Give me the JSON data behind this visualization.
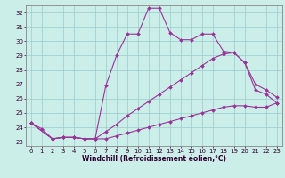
{
  "xlabel": "Windchill (Refroidissement éolien,°C)",
  "ylabel": "",
  "xlim": [
    -0.5,
    23.5
  ],
  "ylim": [
    22.7,
    32.5
  ],
  "yticks": [
    23,
    24,
    25,
    26,
    27,
    28,
    29,
    30,
    31,
    32
  ],
  "xticks": [
    0,
    1,
    2,
    3,
    4,
    5,
    6,
    7,
    8,
    9,
    10,
    11,
    12,
    13,
    14,
    15,
    16,
    17,
    18,
    19,
    20,
    21,
    22,
    23
  ],
  "background_color": "#cceee8",
  "line_color": "#993399",
  "grid_color": "#99cccc",
  "lines": [
    {
      "x": [
        0,
        1,
        2,
        3,
        4,
        5,
        6,
        7,
        8,
        9,
        10,
        11,
        12,
        13,
        14,
        15,
        16,
        17,
        18,
        19,
        20,
        21,
        22,
        23
      ],
      "y": [
        24.3,
        23.9,
        23.2,
        23.3,
        23.3,
        23.2,
        23.2,
        26.9,
        29.0,
        30.5,
        30.5,
        32.3,
        32.3,
        30.6,
        30.1,
        30.1,
        30.5,
        30.5,
        29.3,
        29.2,
        28.5,
        26.6,
        26.3,
        25.7
      ]
    },
    {
      "x": [
        0,
        2,
        3,
        4,
        5,
        6,
        7,
        8,
        9,
        10,
        11,
        12,
        13,
        14,
        15,
        16,
        17,
        18,
        19,
        20,
        21,
        22,
        23
      ],
      "y": [
        24.3,
        23.2,
        23.3,
        23.3,
        23.2,
        23.2,
        23.7,
        24.2,
        24.8,
        25.3,
        25.8,
        26.3,
        26.8,
        27.3,
        27.8,
        28.3,
        28.8,
        29.1,
        29.2,
        28.5,
        27.0,
        26.6,
        26.1
      ]
    },
    {
      "x": [
        0,
        2,
        3,
        4,
        5,
        6,
        7,
        8,
        9,
        10,
        11,
        12,
        13,
        14,
        15,
        16,
        17,
        18,
        19,
        20,
        21,
        22,
        23
      ],
      "y": [
        24.3,
        23.2,
        23.3,
        23.3,
        23.2,
        23.2,
        23.2,
        23.4,
        23.6,
        23.8,
        24.0,
        24.2,
        24.4,
        24.6,
        24.8,
        25.0,
        25.2,
        25.4,
        25.5,
        25.5,
        25.4,
        25.4,
        25.7
      ]
    }
  ],
  "tick_fontsize": 5.0,
  "xlabel_fontsize": 5.5,
  "figure_width": 3.2,
  "figure_height": 2.0,
  "dpi": 100
}
